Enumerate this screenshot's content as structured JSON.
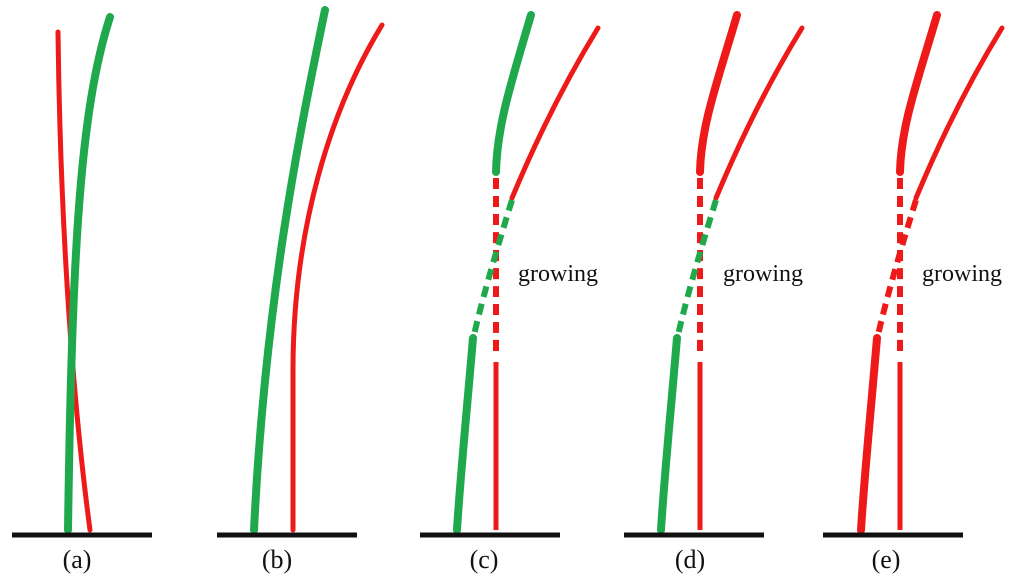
{
  "colors": {
    "green": "#1fa84c",
    "red": "#ee1a1a",
    "ground": "#111111",
    "background": "#ffffff"
  },
  "panels": [
    {
      "label": "(a)",
      "note": ""
    },
    {
      "label": "(b)",
      "note": ""
    },
    {
      "label": "(c)",
      "note": "growing"
    },
    {
      "label": "(d)",
      "note": "growing"
    },
    {
      "label": "(e)",
      "note": "growing"
    }
  ]
}
